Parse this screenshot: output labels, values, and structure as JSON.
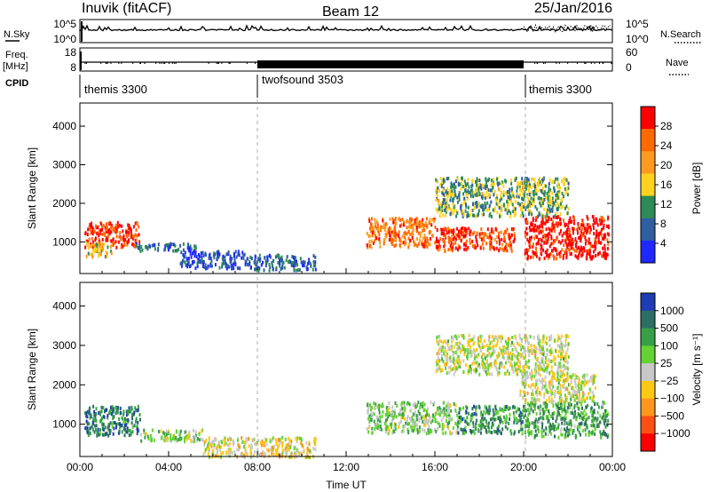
{
  "header": {
    "station": "Inuvik (fitACF)",
    "beam": "Beam 12",
    "date": "25/Jan/2016"
  },
  "chart_data": [
    {
      "type": "line",
      "panel": "noise",
      "left_label": "N.Sky",
      "right_label": "N.Search",
      "left_ticks": [
        "10^5",
        "10^0"
      ],
      "right_ticks": [
        "10^5",
        "10^0"
      ]
    },
    {
      "type": "line",
      "panel": "frequency",
      "left_label": "Freq.",
      "left_unit": "[MHz]",
      "right_label": "Nave",
      "left_ticks": [
        "18",
        "8"
      ],
      "right_ticks": [
        "60",
        "0"
      ],
      "cpid_label": "CPID",
      "cpid_segments": [
        {
          "label": "themis 3300",
          "start_hour": 0,
          "end_hour": 8
        },
        {
          "label": "twofsound 3503",
          "start_hour": 8,
          "end_hour": 20
        },
        {
          "label": "themis 3300",
          "start_hour": 20,
          "end_hour": 24
        }
      ]
    },
    {
      "type": "heatmap",
      "panel": "power",
      "ylabel": "Slant Range [km]",
      "ylim": [
        180,
        4600
      ],
      "yticks": [
        1000,
        2000,
        3000,
        4000
      ],
      "colorbar_label": "Power [dB]",
      "colorbar_ticks": [
        "28",
        "24",
        "20",
        "16",
        "12",
        "8",
        "4"
      ],
      "colors": [
        "#ff0000",
        "#ff6a00",
        "#ff9a1e",
        "#ffd21e",
        "#2e8b57",
        "#2f5fa0",
        "#1e28ff"
      ],
      "blobs": [
        {
          "t": [
            0.2,
            2.7
          ],
          "r": [
            900,
            1550
          ],
          "level": 0.9
        },
        {
          "t": [
            0.2,
            1.4
          ],
          "r": [
            650,
            1000
          ],
          "level": 0.5
        },
        {
          "t": [
            2.5,
            5.2
          ],
          "r": [
            800,
            1000
          ],
          "level": 0.25
        },
        {
          "t": [
            4.5,
            7.5
          ],
          "r": [
            350,
            800
          ],
          "level": 0.15
        },
        {
          "t": [
            7.5,
            10.6
          ],
          "r": [
            300,
            700
          ],
          "level": 0.25
        },
        {
          "t": [
            12.9,
            16.0
          ],
          "r": [
            900,
            1650
          ],
          "level": 0.75
        },
        {
          "t": [
            16.0,
            19.6
          ],
          "r": [
            800,
            1400
          ],
          "level": 0.85
        },
        {
          "t": [
            20.0,
            23.8
          ],
          "r": [
            600,
            1700
          ],
          "level": 0.95
        },
        {
          "t": [
            16.0,
            22.0
          ],
          "r": [
            1700,
            2700
          ],
          "level": 0.4
        }
      ]
    },
    {
      "type": "heatmap",
      "panel": "velocity",
      "ylabel": "Slant Range [km]",
      "ylim": [
        180,
        4600
      ],
      "yticks": [
        1000,
        2000,
        3000,
        4000
      ],
      "xlabel": "Time UT",
      "x_ticks": [
        "00:00",
        "04:00",
        "08:00",
        "12:00",
        "16:00",
        "20:00",
        "00:00"
      ],
      "x_range_hours": [
        0,
        24
      ],
      "colorbar_label": "Velocity [m s⁻¹]",
      "colorbar_ticks": [
        "1000",
        "500",
        "100",
        "25",
        "−25",
        "−100",
        "−500",
        "−1000"
      ],
      "colors": [
        "#1e3cb4",
        "#2d6e64",
        "#37a046",
        "#64d232",
        "#c8c8c8",
        "#ffc814",
        "#ff961e",
        "#ff5014",
        "#ff0000"
      ],
      "blobs": [
        {
          "t": [
            0.2,
            2.7
          ],
          "r": [
            750,
            1500
          ],
          "level": 0.82
        },
        {
          "t": [
            2.7,
            5.5
          ],
          "r": [
            600,
            900
          ],
          "level": 0.55
        },
        {
          "t": [
            5.5,
            10.6
          ],
          "r": [
            200,
            700
          ],
          "level": 0.45
        },
        {
          "t": [
            12.9,
            17.0
          ],
          "r": [
            800,
            1600
          ],
          "level": 0.6
        },
        {
          "t": [
            17.0,
            20.0
          ],
          "r": [
            800,
            1500
          ],
          "level": 0.75
        },
        {
          "t": [
            20.0,
            23.8
          ],
          "r": [
            700,
            1600
          ],
          "level": 0.7
        },
        {
          "t": [
            19.8,
            23.2
          ],
          "r": [
            1600,
            2300
          ],
          "level": 0.5
        },
        {
          "t": [
            16.0,
            22.0
          ],
          "r": [
            2300,
            3300
          ],
          "level": 0.5
        }
      ]
    }
  ]
}
